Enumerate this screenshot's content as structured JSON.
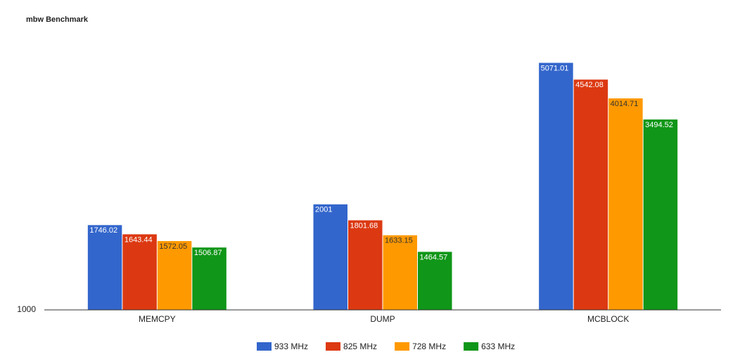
{
  "chart_data": {
    "type": "bar",
    "title": "mbw Benchmark",
    "categories": [
      "MEMCPY",
      "DUMP",
      "MCBLOCK"
    ],
    "series": [
      {
        "name": "933 MHz",
        "color": "#3366cc",
        "values": [
          1746.02,
          2001,
          5071.01
        ]
      },
      {
        "name": "825 MHz",
        "color": "#dc3912",
        "values": [
          1643.44,
          1801.68,
          4542.08
        ]
      },
      {
        "name": "728 MHz",
        "color": "#ff9900",
        "values": [
          1572.05,
          1633.15,
          4014.71
        ]
      },
      {
        "name": "633 MHz",
        "color": "#109618",
        "values": [
          1506.87,
          1464.57,
          3494.52
        ]
      }
    ],
    "ylim": [
      1000,
      6000
    ],
    "yticks": [
      1000
    ],
    "log_scale": true,
    "legend": "bottom"
  }
}
